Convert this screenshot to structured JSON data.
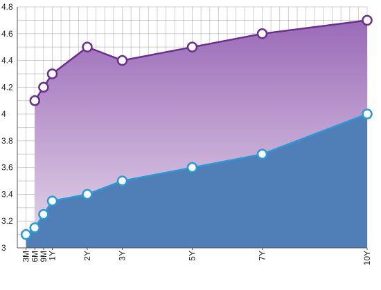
{
  "chart_data": {
    "type": "area",
    "x_categories": [
      "3M",
      "6M",
      "9M",
      "1Y",
      "2Y",
      "3Y",
      "5Y",
      "7Y",
      "10Y"
    ],
    "x_values": [
      0.25,
      0.5,
      0.75,
      1,
      2,
      3,
      5,
      7,
      10
    ],
    "series": [
      {
        "values": [
          4.1,
          4.2,
          4.3,
          4.5,
          4.4,
          4.5,
          4.6,
          4.7
        ],
        "x": [
          0.5,
          0.75,
          1,
          2,
          3,
          5,
          7,
          10
        ],
        "color": "#6a2e8c",
        "fill_top": "#9a6ab8",
        "fill_bottom": "#e6d8ea"
      },
      {
        "values": [
          3.1,
          3.15,
          3.25,
          3.35,
          3.4,
          3.5,
          3.6,
          3.7,
          4.0
        ],
        "x": [
          0.25,
          0.5,
          0.75,
          1,
          2,
          3,
          5,
          7,
          10
        ],
        "color": "#2a9ad6",
        "fill": "#4f7fb6"
      }
    ],
    "y_ticks": [
      "3",
      "3.2",
      "3.4",
      "3.6",
      "3.8",
      "4",
      "4.2",
      "4.4",
      "4.6",
      "4.8"
    ],
    "ylim": [
      3,
      4.8
    ],
    "xlim": [
      0,
      10
    ],
    "grid": true
  }
}
